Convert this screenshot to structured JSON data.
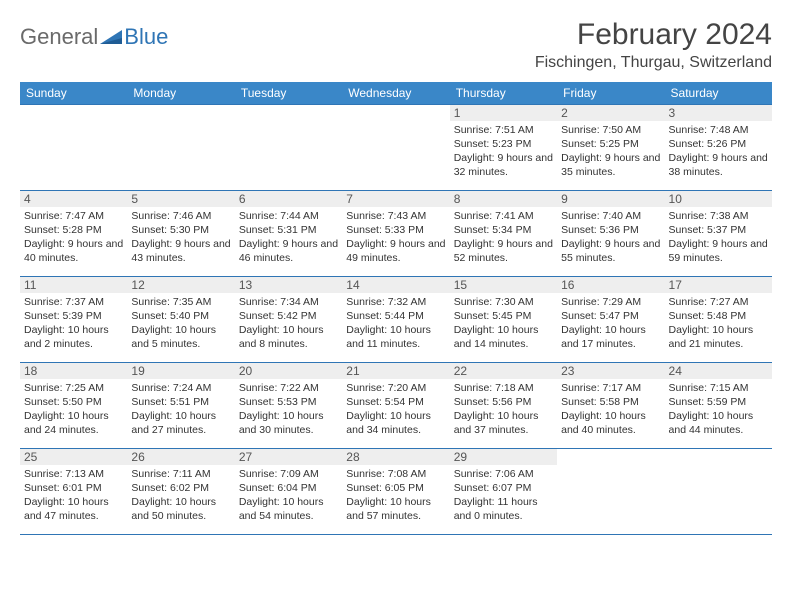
{
  "logo": {
    "general": "General",
    "blue": "Blue"
  },
  "title": "February 2024",
  "location": "Fischingen, Thurgau, Switzerland",
  "colors": {
    "header_bg": "#3a87c8",
    "header_text": "#ffffff",
    "rule": "#2f75b5",
    "daynum_bg": "#eeeeee",
    "logo_gray": "#6a6a6a",
    "logo_blue": "#2f75b5",
    "text": "#333333"
  },
  "weekdays": [
    "Sunday",
    "Monday",
    "Tuesday",
    "Wednesday",
    "Thursday",
    "Friday",
    "Saturday"
  ],
  "weeks": [
    [
      null,
      null,
      null,
      null,
      {
        "day": "1",
        "sunrise": "Sunrise: 7:51 AM",
        "sunset": "Sunset: 5:23 PM",
        "daylight": "Daylight: 9 hours and 32 minutes."
      },
      {
        "day": "2",
        "sunrise": "Sunrise: 7:50 AM",
        "sunset": "Sunset: 5:25 PM",
        "daylight": "Daylight: 9 hours and 35 minutes."
      },
      {
        "day": "3",
        "sunrise": "Sunrise: 7:48 AM",
        "sunset": "Sunset: 5:26 PM",
        "daylight": "Daylight: 9 hours and 38 minutes."
      }
    ],
    [
      {
        "day": "4",
        "sunrise": "Sunrise: 7:47 AM",
        "sunset": "Sunset: 5:28 PM",
        "daylight": "Daylight: 9 hours and 40 minutes."
      },
      {
        "day": "5",
        "sunrise": "Sunrise: 7:46 AM",
        "sunset": "Sunset: 5:30 PM",
        "daylight": "Daylight: 9 hours and 43 minutes."
      },
      {
        "day": "6",
        "sunrise": "Sunrise: 7:44 AM",
        "sunset": "Sunset: 5:31 PM",
        "daylight": "Daylight: 9 hours and 46 minutes."
      },
      {
        "day": "7",
        "sunrise": "Sunrise: 7:43 AM",
        "sunset": "Sunset: 5:33 PM",
        "daylight": "Daylight: 9 hours and 49 minutes."
      },
      {
        "day": "8",
        "sunrise": "Sunrise: 7:41 AM",
        "sunset": "Sunset: 5:34 PM",
        "daylight": "Daylight: 9 hours and 52 minutes."
      },
      {
        "day": "9",
        "sunrise": "Sunrise: 7:40 AM",
        "sunset": "Sunset: 5:36 PM",
        "daylight": "Daylight: 9 hours and 55 minutes."
      },
      {
        "day": "10",
        "sunrise": "Sunrise: 7:38 AM",
        "sunset": "Sunset: 5:37 PM",
        "daylight": "Daylight: 9 hours and 59 minutes."
      }
    ],
    [
      {
        "day": "11",
        "sunrise": "Sunrise: 7:37 AM",
        "sunset": "Sunset: 5:39 PM",
        "daylight": "Daylight: 10 hours and 2 minutes."
      },
      {
        "day": "12",
        "sunrise": "Sunrise: 7:35 AM",
        "sunset": "Sunset: 5:40 PM",
        "daylight": "Daylight: 10 hours and 5 minutes."
      },
      {
        "day": "13",
        "sunrise": "Sunrise: 7:34 AM",
        "sunset": "Sunset: 5:42 PM",
        "daylight": "Daylight: 10 hours and 8 minutes."
      },
      {
        "day": "14",
        "sunrise": "Sunrise: 7:32 AM",
        "sunset": "Sunset: 5:44 PM",
        "daylight": "Daylight: 10 hours and 11 minutes."
      },
      {
        "day": "15",
        "sunrise": "Sunrise: 7:30 AM",
        "sunset": "Sunset: 5:45 PM",
        "daylight": "Daylight: 10 hours and 14 minutes."
      },
      {
        "day": "16",
        "sunrise": "Sunrise: 7:29 AM",
        "sunset": "Sunset: 5:47 PM",
        "daylight": "Daylight: 10 hours and 17 minutes."
      },
      {
        "day": "17",
        "sunrise": "Sunrise: 7:27 AM",
        "sunset": "Sunset: 5:48 PM",
        "daylight": "Daylight: 10 hours and 21 minutes."
      }
    ],
    [
      {
        "day": "18",
        "sunrise": "Sunrise: 7:25 AM",
        "sunset": "Sunset: 5:50 PM",
        "daylight": "Daylight: 10 hours and 24 minutes."
      },
      {
        "day": "19",
        "sunrise": "Sunrise: 7:24 AM",
        "sunset": "Sunset: 5:51 PM",
        "daylight": "Daylight: 10 hours and 27 minutes."
      },
      {
        "day": "20",
        "sunrise": "Sunrise: 7:22 AM",
        "sunset": "Sunset: 5:53 PM",
        "daylight": "Daylight: 10 hours and 30 minutes."
      },
      {
        "day": "21",
        "sunrise": "Sunrise: 7:20 AM",
        "sunset": "Sunset: 5:54 PM",
        "daylight": "Daylight: 10 hours and 34 minutes."
      },
      {
        "day": "22",
        "sunrise": "Sunrise: 7:18 AM",
        "sunset": "Sunset: 5:56 PM",
        "daylight": "Daylight: 10 hours and 37 minutes."
      },
      {
        "day": "23",
        "sunrise": "Sunrise: 7:17 AM",
        "sunset": "Sunset: 5:58 PM",
        "daylight": "Daylight: 10 hours and 40 minutes."
      },
      {
        "day": "24",
        "sunrise": "Sunrise: 7:15 AM",
        "sunset": "Sunset: 5:59 PM",
        "daylight": "Daylight: 10 hours and 44 minutes."
      }
    ],
    [
      {
        "day": "25",
        "sunrise": "Sunrise: 7:13 AM",
        "sunset": "Sunset: 6:01 PM",
        "daylight": "Daylight: 10 hours and 47 minutes."
      },
      {
        "day": "26",
        "sunrise": "Sunrise: 7:11 AM",
        "sunset": "Sunset: 6:02 PM",
        "daylight": "Daylight: 10 hours and 50 minutes."
      },
      {
        "day": "27",
        "sunrise": "Sunrise: 7:09 AM",
        "sunset": "Sunset: 6:04 PM",
        "daylight": "Daylight: 10 hours and 54 minutes."
      },
      {
        "day": "28",
        "sunrise": "Sunrise: 7:08 AM",
        "sunset": "Sunset: 6:05 PM",
        "daylight": "Daylight: 10 hours and 57 minutes."
      },
      {
        "day": "29",
        "sunrise": "Sunrise: 7:06 AM",
        "sunset": "Sunset: 6:07 PM",
        "daylight": "Daylight: 11 hours and 0 minutes."
      },
      null,
      null
    ]
  ]
}
